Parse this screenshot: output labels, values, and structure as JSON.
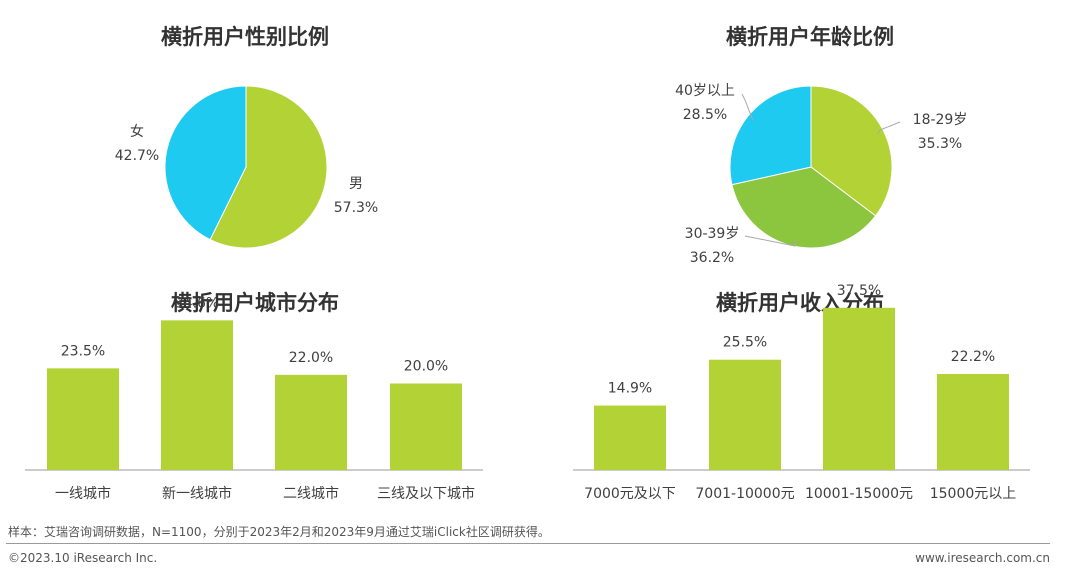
{
  "colors": {
    "primary": "#b2d235",
    "secondary": "#1ecaf0",
    "tertiary": "#8cc63f",
    "axis": "#999999",
    "leader": "#aaaaaa"
  },
  "chart_data": [
    {
      "type": "pie",
      "title": "横折用户性别比例",
      "slices": [
        {
          "name": "男",
          "value": 57.3,
          "label": "57.3%",
          "color": "#b2d235"
        },
        {
          "name": "女",
          "value": 42.7,
          "label": "42.7%",
          "color": "#1ecaf0"
        }
      ]
    },
    {
      "type": "pie",
      "title": "横折用户年龄比例",
      "slices": [
        {
          "name": "18-29岁",
          "value": 35.3,
          "label": "35.3%",
          "color": "#b2d235"
        },
        {
          "name": "30-39岁",
          "value": 36.2,
          "label": "36.2%",
          "color": "#8cc63f"
        },
        {
          "name": "40岁以上",
          "value": 28.5,
          "label": "28.5%",
          "color": "#1ecaf0"
        }
      ]
    },
    {
      "type": "bar",
      "title": "横折用户城市分布",
      "categories": [
        "一线城市",
        "新一线城市",
        "二线城市",
        "三线及以下城市"
      ],
      "values": [
        23.5,
        34.6,
        22.0,
        20.0
      ],
      "labels": [
        "23.5%",
        "34.6%",
        "22.0%",
        "20.0%"
      ],
      "ylim": [
        0,
        40
      ]
    },
    {
      "type": "bar",
      "title": "横折用户收入分布",
      "categories": [
        "7000元及以下",
        "7001-10000元",
        "10001-15000元",
        "15000元以上"
      ],
      "values": [
        14.9,
        25.5,
        37.5,
        22.2
      ],
      "labels": [
        "14.9%",
        "25.5%",
        "37.5%",
        "22.2%"
      ],
      "ylim": [
        0,
        40
      ]
    }
  ],
  "footer": {
    "source": "样本：艾瑞咨询调研数据，N=1100，分别于2023年2月和2023年9月通过艾瑞iClick社区调研获得。",
    "copyright": "©2023.10 iResearch Inc.",
    "website": "www.iresearch.com.cn"
  }
}
